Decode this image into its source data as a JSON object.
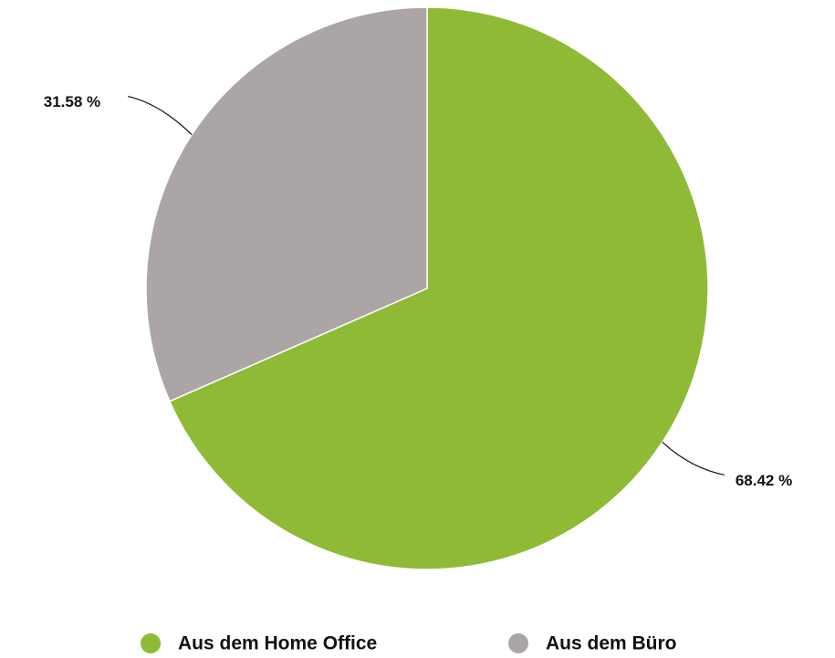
{
  "chart_data": {
    "type": "pie",
    "categories": [
      "Aus dem Home Office",
      "Aus dem Büro"
    ],
    "values": [
      68.42,
      31.58
    ],
    "value_labels": [
      "68.42 %",
      "31.58 %"
    ],
    "colors": [
      "#8fba35",
      "#aba6a5"
    ],
    "legend": "bottom"
  }
}
